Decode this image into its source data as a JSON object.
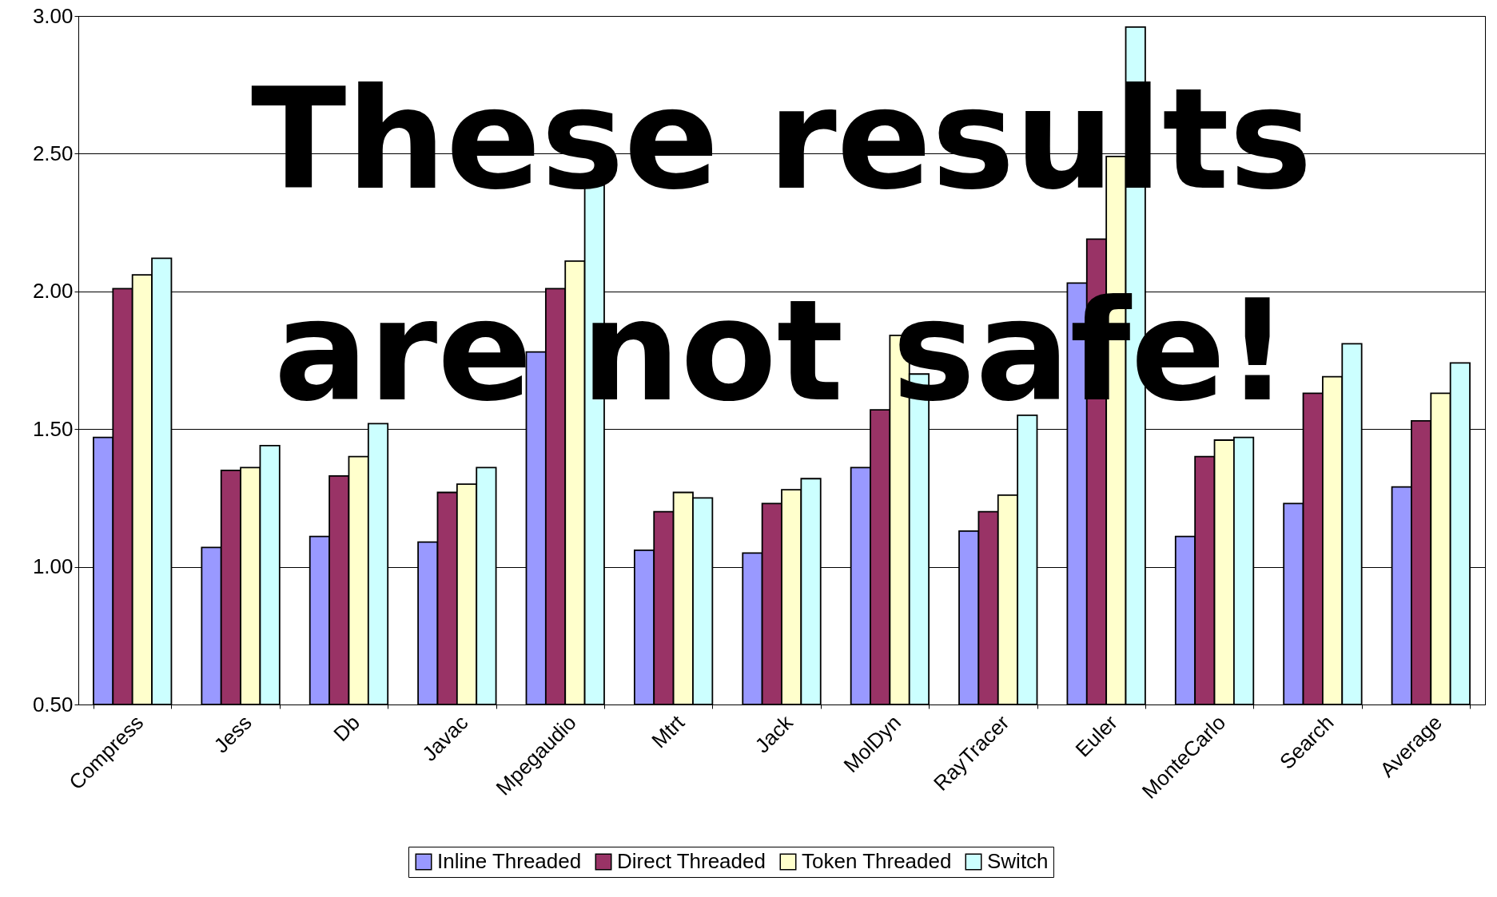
{
  "chart_data": {
    "type": "bar",
    "categories": [
      "Compress",
      "Jess",
      "Db",
      "Javac",
      "Mpegaudio",
      "Mtrt",
      "Jack",
      "MolDyn",
      "RayTracer",
      "Euler",
      "MonteCarlo",
      "Search",
      "Average"
    ],
    "series": [
      {
        "name": "Inline Threaded",
        "color": "#9999ff",
        "values": [
          1.47,
          1.07,
          1.11,
          1.09,
          1.78,
          1.06,
          1.05,
          1.36,
          1.13,
          2.03,
          1.11,
          1.23,
          1.29
        ]
      },
      {
        "name": "Direct Threaded",
        "color": "#993366",
        "values": [
          2.01,
          1.35,
          1.33,
          1.27,
          2.01,
          1.2,
          1.23,
          1.57,
          1.2,
          2.19,
          1.4,
          1.63,
          1.53
        ]
      },
      {
        "name": "Token Threaded",
        "color": "#ffffcc",
        "values": [
          2.06,
          1.36,
          1.4,
          1.3,
          2.11,
          1.27,
          1.28,
          1.84,
          1.26,
          2.49,
          1.46,
          1.69,
          1.63
        ]
      },
      {
        "name": "Switch",
        "color": "#ccffff",
        "values": [
          2.12,
          1.44,
          1.52,
          1.36,
          2.39,
          1.25,
          1.32,
          1.7,
          1.55,
          2.96,
          1.47,
          1.81,
          1.74
        ]
      }
    ],
    "ylim": [
      0.5,
      3.0
    ],
    "yticks": [
      {
        "value": 0.5,
        "label": "0.50"
      },
      {
        "value": 1.0,
        "label": "1.00"
      },
      {
        "value": 1.5,
        "label": "1.50"
      },
      {
        "value": 2.0,
        "label": "2.00"
      },
      {
        "value": 2.5,
        "label": "2.50"
      },
      {
        "value": 3.0,
        "label": "3.00"
      }
    ],
    "grid": "y",
    "legend": "bottom",
    "annotations": [
      "These results",
      "are not safe!"
    ]
  }
}
